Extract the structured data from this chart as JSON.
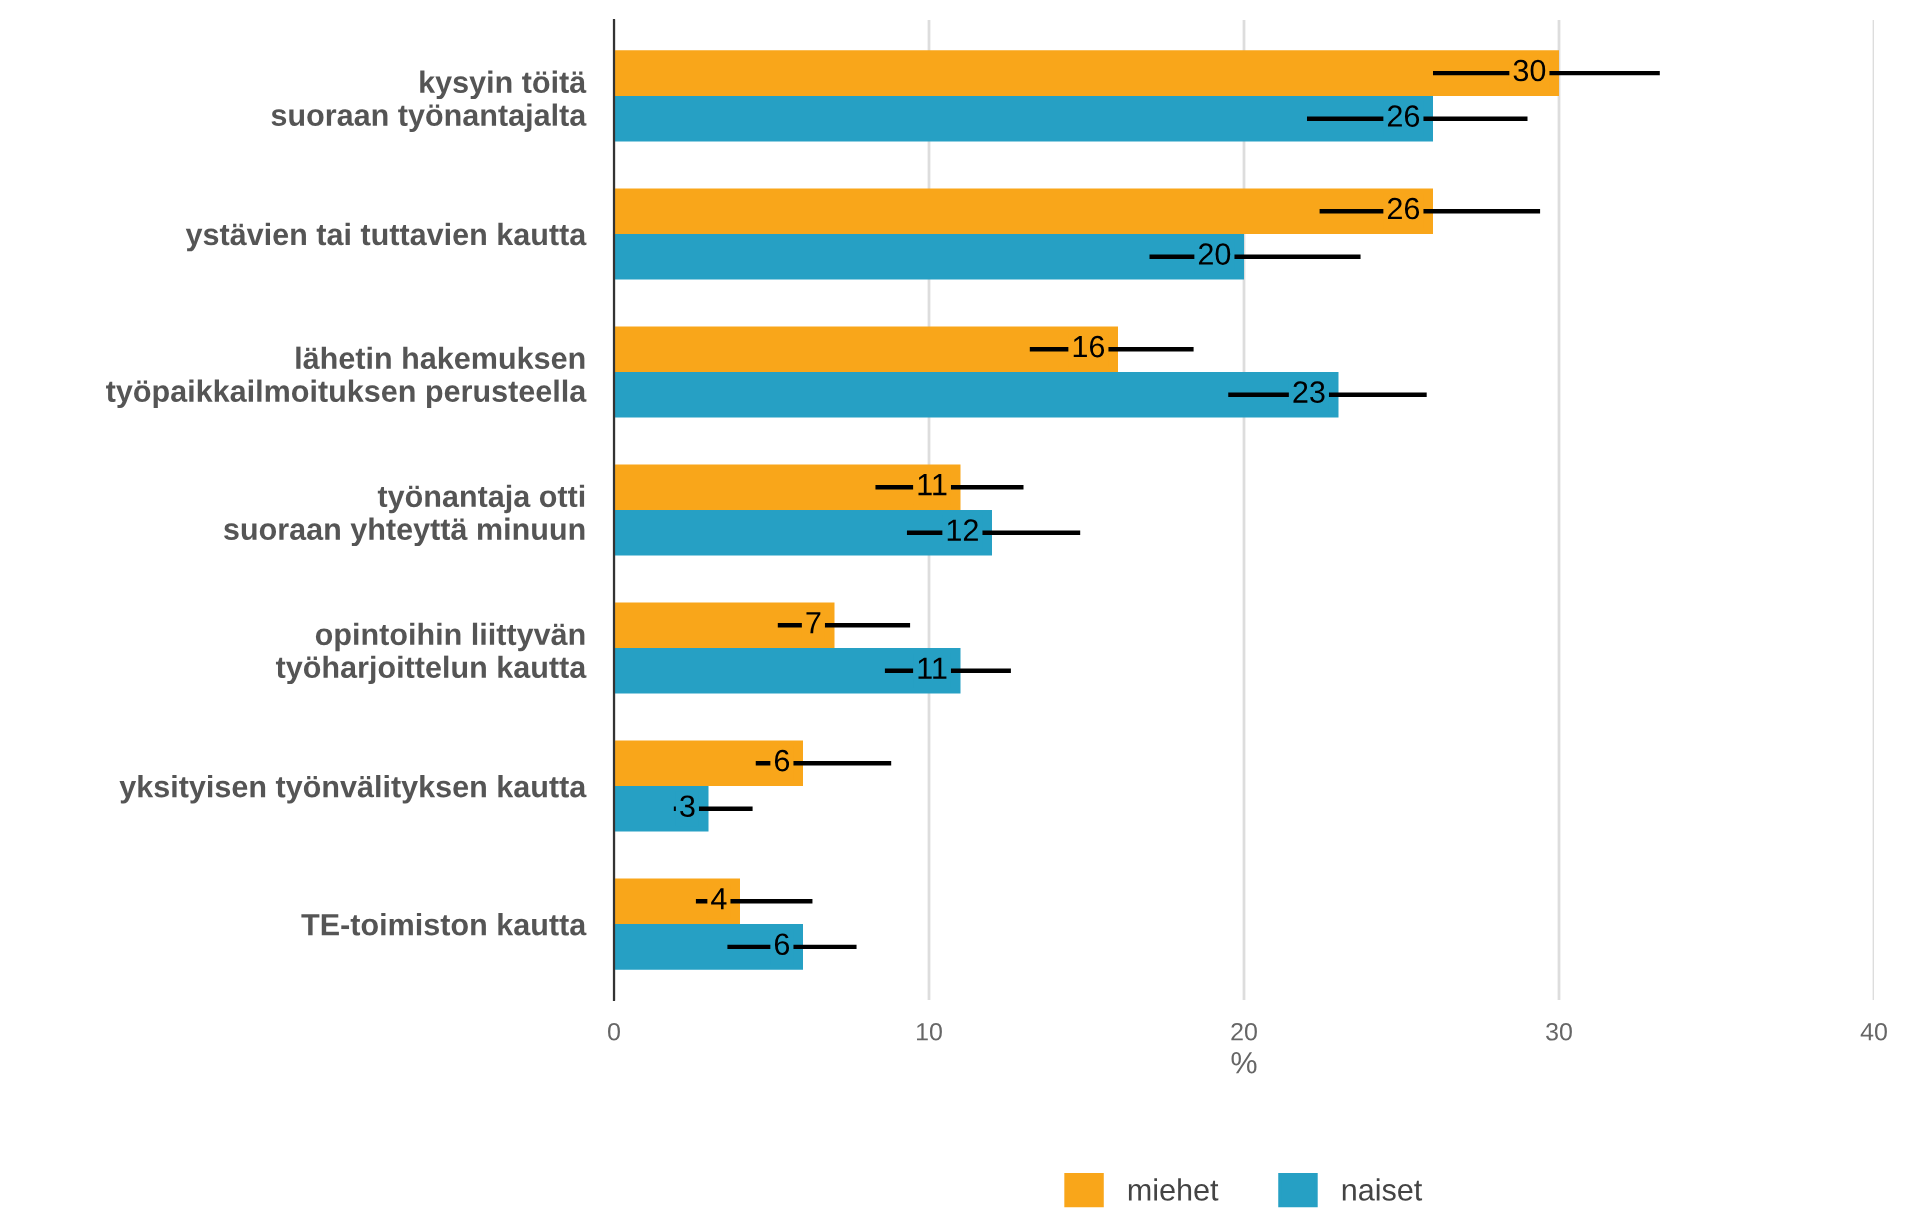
{
  "chart_data": {
    "type": "bar",
    "orientation": "horizontal",
    "xlabel": "%",
    "categories": [
      "kysyin töitä\nsuoraan työnantajalta",
      "ystävien tai tuttavien kautta",
      "lähetin hakemuksen\ntyöpaikkailmoituksen perusteella",
      "työnantaja otti\nsuoraan yhteyttä minuun",
      "opintoihin liittyvän\ntyöharjoittelun kautta",
      "yksityisen työnvälityksen kautta",
      "TE-toimiston kautta"
    ],
    "series": [
      {
        "name": "miehet",
        "color": "#f9a61a",
        "values": [
          30,
          26,
          16,
          11,
          7,
          6,
          4
        ],
        "errors": [
          [
            26,
            33.2
          ],
          [
            22.4,
            29.4
          ],
          [
            13.2,
            18.4
          ],
          [
            8.3,
            13
          ],
          [
            5.2,
            9.4
          ],
          [
            4.5,
            8.8
          ],
          [
            2.6,
            6.3
          ]
        ]
      },
      {
        "name": "naiset",
        "color": "#26a0c4",
        "values": [
          26,
          20,
          23,
          12,
          11,
          3,
          6
        ],
        "errors": [
          [
            22,
            29
          ],
          [
            17,
            23.7
          ],
          [
            19.5,
            25.8
          ],
          [
            9.3,
            14.8
          ],
          [
            8.6,
            12.6
          ],
          [
            1.9,
            4.4
          ],
          [
            3.6,
            7.7
          ]
        ]
      }
    ],
    "xlim": [
      0,
      40
    ],
    "xticks": [
      0,
      10,
      20,
      30,
      40
    ],
    "grid": "x",
    "legend": "bottom",
    "data_labels": true
  }
}
